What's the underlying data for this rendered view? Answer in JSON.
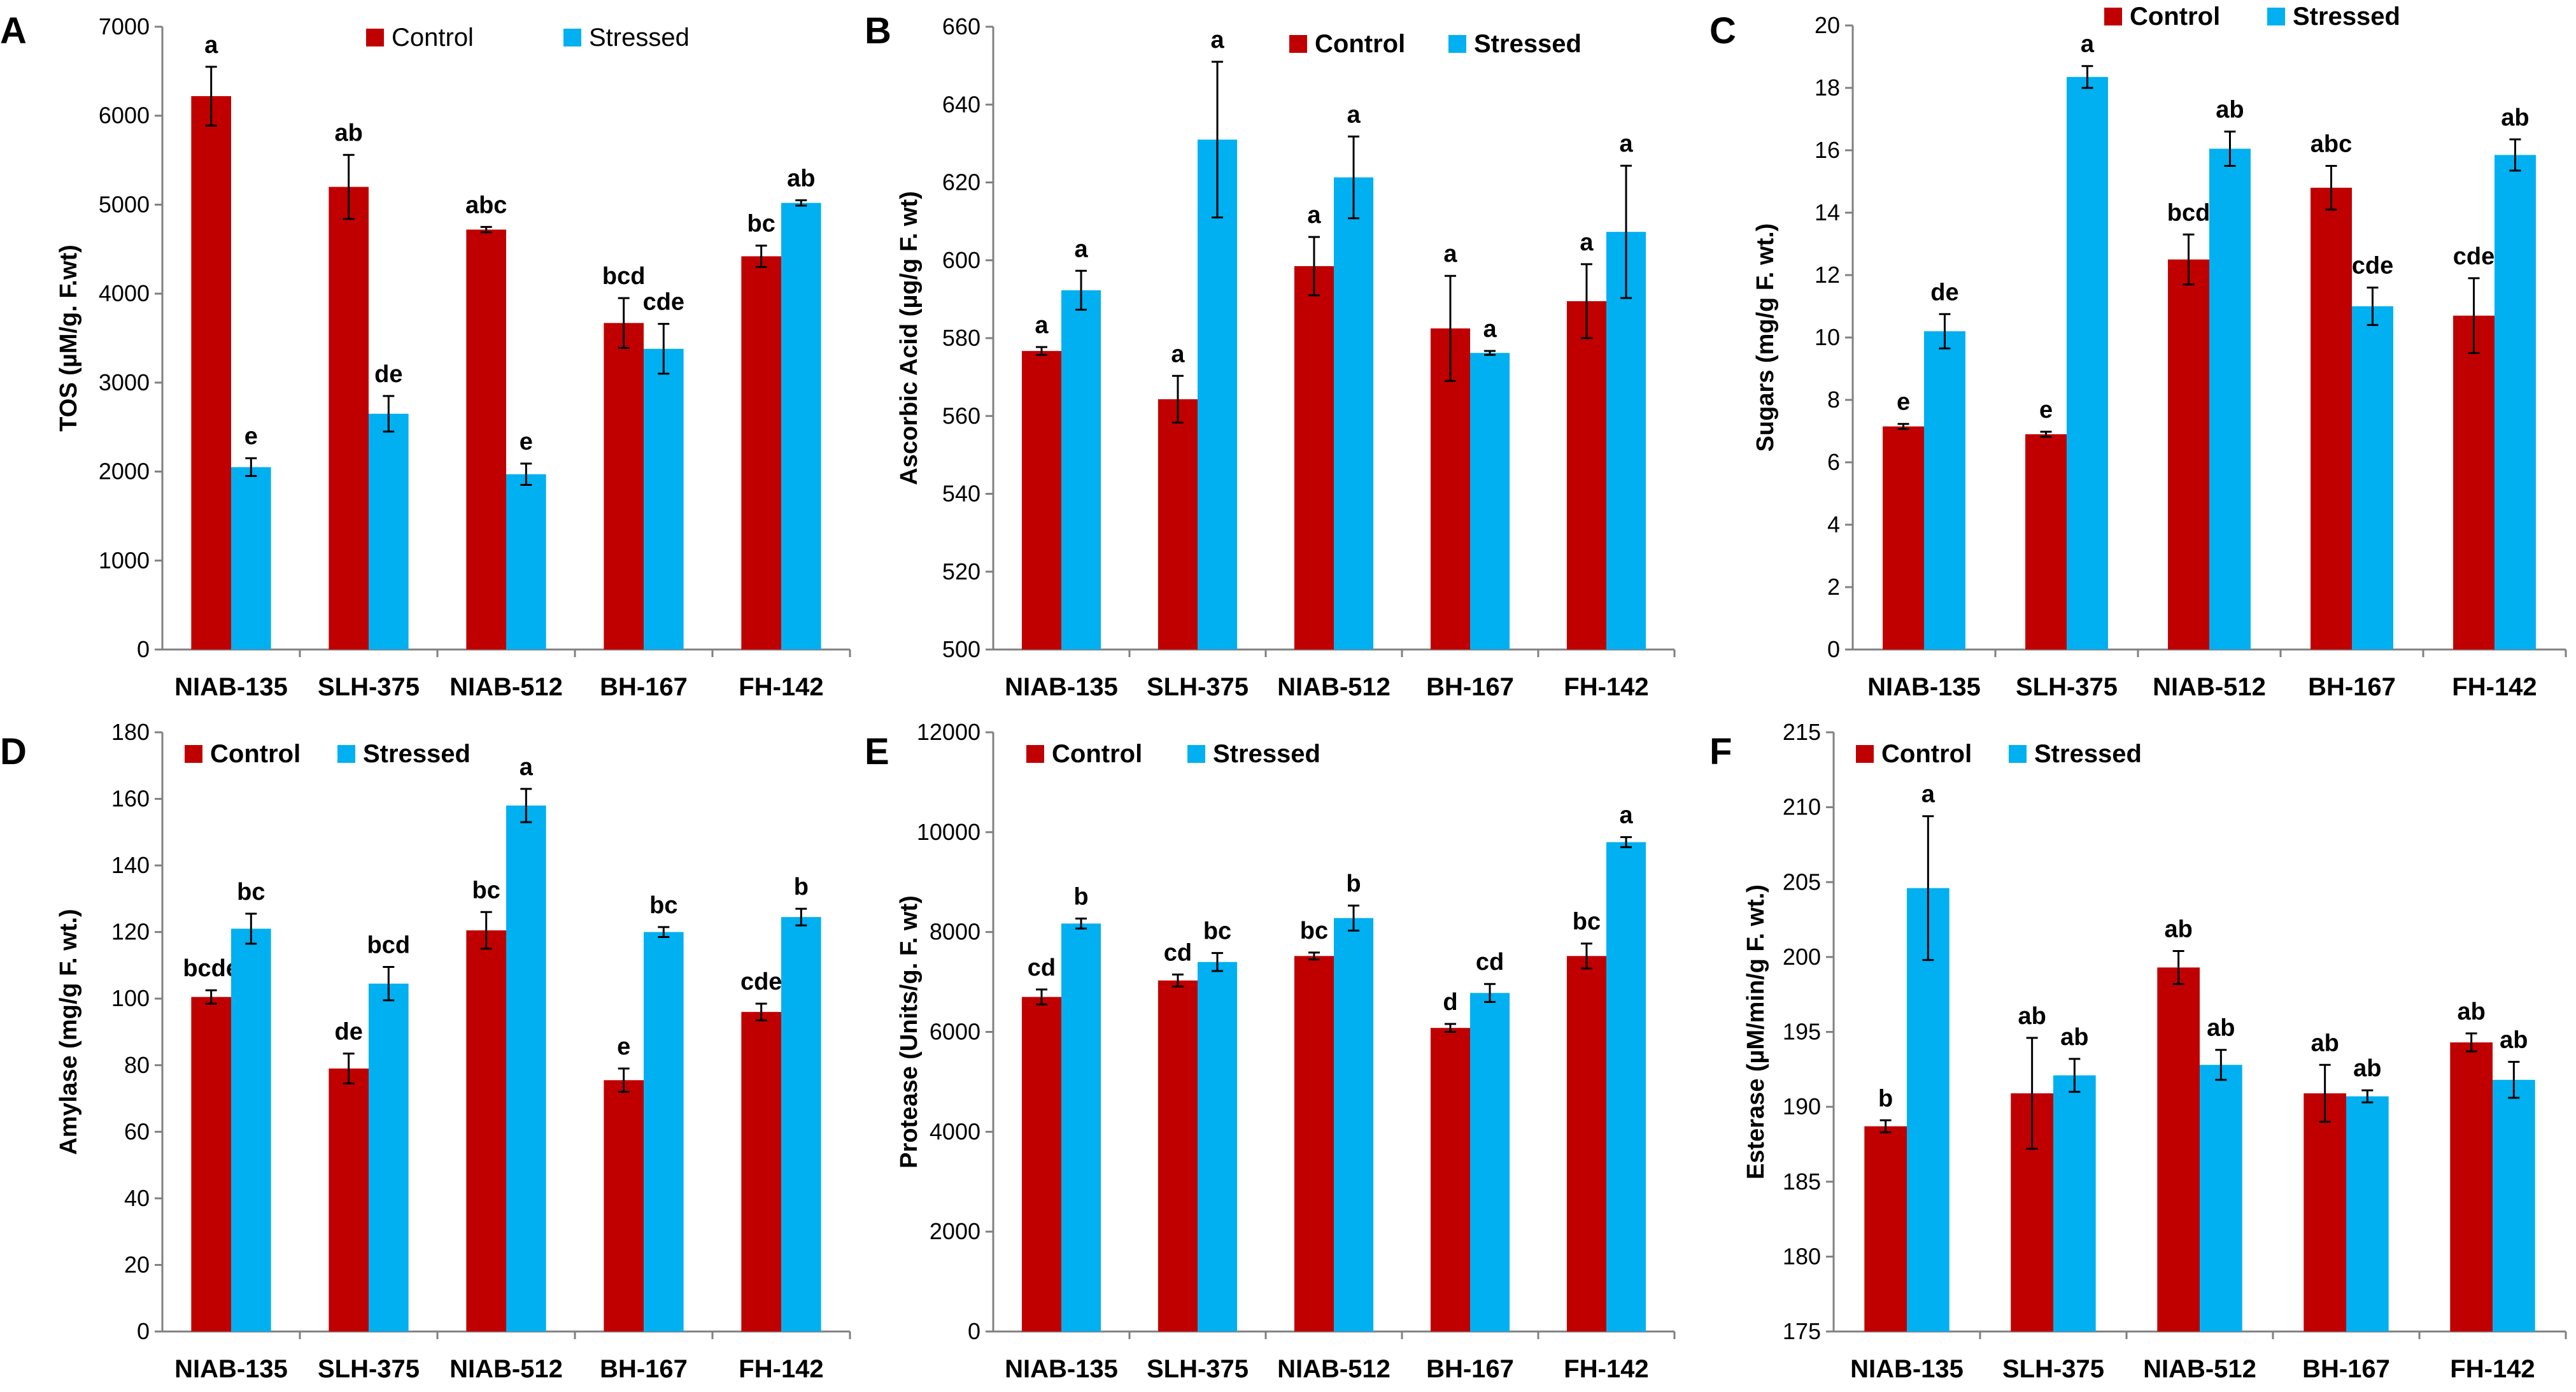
{
  "colors": {
    "control": "#C00000",
    "stressed": "#00B0F0",
    "axis": "#808080",
    "text": "#000000",
    "errorbar": "#000000"
  },
  "legend": {
    "control": "Control",
    "stressed": "Stressed"
  },
  "chart_data": [
    {
      "panel": "A",
      "type": "bar",
      "ylabel": "TOS (µM/g. F.wt)",
      "categories": [
        "NIAB-135",
        "SLH-375",
        "NIAB-512",
        "BH-167",
        "FH-142"
      ],
      "ylim": [
        0,
        7000
      ],
      "yticks": [
        "0",
        "1000",
        "2000",
        "3000",
        "4000",
        "5000",
        "6000",
        "7000"
      ],
      "legend_position": "top-center",
      "series": [
        {
          "name": "Control",
          "values": [
            6220,
            5200,
            4720,
            3670,
            4420
          ],
          "errors": [
            330,
            360,
            30,
            280,
            120
          ],
          "letters": [
            "a",
            "ab",
            "abc",
            "bcd",
            "bc"
          ]
        },
        {
          "name": "Stressed",
          "values": [
            2050,
            2650,
            1970,
            3380,
            5020
          ],
          "errors": [
            100,
            200,
            120,
            280,
            30
          ],
          "letters": [
            "e",
            "de",
            "e",
            "cde",
            "ab"
          ]
        }
      ]
    },
    {
      "panel": "B",
      "type": "bar",
      "ylabel": "Ascorbic Acid (µg/g F. wt)",
      "categories": [
        "NIAB-135",
        "SLH-375",
        "NIAB-512",
        "BH-167",
        "FH-142"
      ],
      "ylim": [
        500,
        660
      ],
      "yticks": [
        "500",
        "520",
        "540",
        "560",
        "580",
        "600",
        "620",
        "640",
        "660"
      ],
      "legend_position": "top-right",
      "series": [
        {
          "name": "Control",
          "values": [
            576.7,
            564.3,
            598.5,
            582.5,
            589.5
          ],
          "errors": [
            1.0,
            6.0,
            7.5,
            13.5,
            9.5
          ],
          "letters": [
            "a",
            "a",
            "a",
            "a",
            "a"
          ]
        },
        {
          "name": "Stressed",
          "values": [
            592.3,
            631.0,
            621.3,
            576.2,
            607.3
          ],
          "errors": [
            5.0,
            20.0,
            10.5,
            0.5,
            17.0
          ],
          "letters": [
            "a",
            "a",
            "a",
            "a",
            "a"
          ]
        }
      ]
    },
    {
      "panel": "C",
      "type": "bar",
      "ylabel": "Sugars (mg/g F. wt.)",
      "categories": [
        "NIAB-135",
        "SLH-375",
        "NIAB-512",
        "BH-167",
        "FH-142"
      ],
      "ylim": [
        0,
        20
      ],
      "yticks": [
        "0",
        "2",
        "4",
        "6",
        "8",
        "10",
        "12",
        "14",
        "16",
        "18",
        "20"
      ],
      "legend_position": "top-right",
      "series": [
        {
          "name": "Control",
          "values": [
            7.15,
            6.9,
            12.5,
            14.8,
            10.7
          ],
          "errors": [
            0.08,
            0.08,
            0.8,
            0.7,
            1.2
          ],
          "letters": [
            "e",
            "e",
            "bcd",
            "abc",
            "cde"
          ]
        },
        {
          "name": "Stressed",
          "values": [
            10.2,
            18.35,
            16.05,
            11.0,
            15.85
          ],
          "errors": [
            0.55,
            0.35,
            0.55,
            0.6,
            0.5
          ],
          "letters": [
            "de",
            "a",
            "ab",
            "cde",
            "ab"
          ]
        }
      ]
    },
    {
      "panel": "D",
      "type": "bar",
      "ylabel": "Amylase (mg/g F. wt.)",
      "categories": [
        "NIAB-135",
        "SLH-375",
        "NIAB-512",
        "BH-167",
        "FH-142"
      ],
      "ylim": [
        0,
        180
      ],
      "yticks": [
        "0",
        "20",
        "40",
        "60",
        "80",
        "100",
        "120",
        "140",
        "160",
        "180"
      ],
      "legend_position": "top-left",
      "series": [
        {
          "name": "Control",
          "values": [
            100.5,
            79,
            120.5,
            75.5,
            96
          ],
          "errors": [
            2,
            4.5,
            5.5,
            3.5,
            2.5
          ],
          "letters": [
            "bcde",
            "de",
            "bc",
            "e",
            "cde"
          ]
        },
        {
          "name": "Stressed",
          "values": [
            121,
            104.5,
            158,
            120,
            124.5
          ],
          "errors": [
            4.5,
            5,
            5,
            1.5,
            2.5
          ],
          "letters": [
            "bc",
            "bcd",
            "a",
            "bc",
            "b"
          ]
        }
      ]
    },
    {
      "panel": "E",
      "type": "bar",
      "ylabel": "Protease (Units/g. F. wt)",
      "categories": [
        "NIAB-135",
        "SLH-375",
        "NIAB-512",
        "BH-167",
        "FH-142"
      ],
      "ylim": [
        0,
        12000
      ],
      "yticks": [
        "0",
        "2000",
        "4000",
        "6000",
        "8000",
        "10000",
        "12000"
      ],
      "legend_position": "top-left",
      "series": [
        {
          "name": "Control",
          "values": [
            6700,
            7030,
            7520,
            6080,
            7520
          ],
          "errors": [
            150,
            120,
            70,
            80,
            250
          ],
          "letters": [
            "cd",
            "cd",
            "bc",
            "d",
            "bc"
          ]
        },
        {
          "name": "Stressed",
          "values": [
            8170,
            7400,
            8280,
            6780,
            9800
          ],
          "errors": [
            100,
            180,
            250,
            180,
            100
          ],
          "letters": [
            "b",
            "bc",
            "b",
            "cd",
            "a"
          ]
        }
      ]
    },
    {
      "panel": "F",
      "type": "bar",
      "ylabel": "Esterase (µM/min/g F. wt.)",
      "categories": [
        "NIAB-135",
        "SLH-375",
        "NIAB-512",
        "BH-167",
        "FH-142"
      ],
      "ylim": [
        175,
        215
      ],
      "yticks": [
        "175",
        "180",
        "185",
        "190",
        "195",
        "200",
        "205",
        "210",
        "215"
      ],
      "legend_position": "top-left",
      "series": [
        {
          "name": "Control",
          "values": [
            188.7,
            190.9,
            199.3,
            190.9,
            194.3
          ],
          "errors": [
            0.4,
            3.7,
            1.1,
            1.9,
            0.6
          ],
          "letters": [
            "b",
            "ab",
            "ab",
            "ab",
            "ab"
          ]
        },
        {
          "name": "Stressed",
          "values": [
            204.6,
            192.1,
            192.8,
            190.7,
            191.8
          ],
          "errors": [
            4.8,
            1.1,
            1.0,
            0.4,
            1.2
          ],
          "letters": [
            "a",
            "ab",
            "ab",
            "ab",
            "ab"
          ]
        }
      ]
    }
  ]
}
